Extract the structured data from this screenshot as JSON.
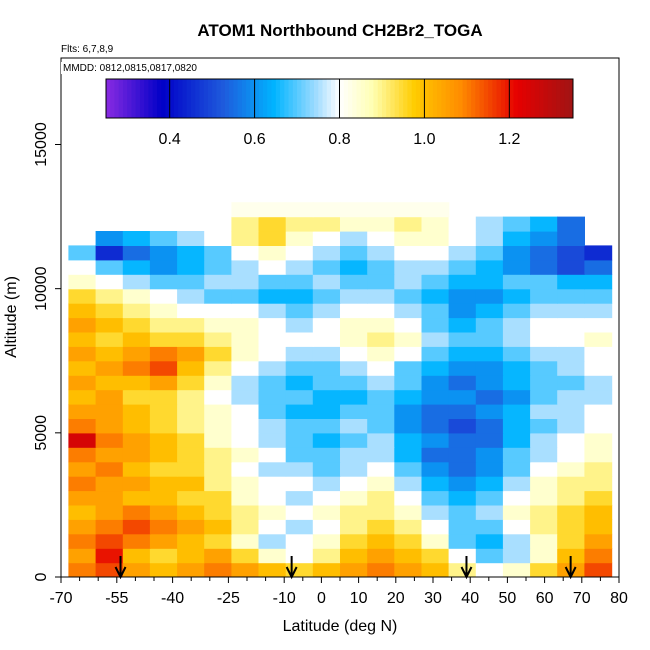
{
  "chart_data": {
    "type": "heatmap",
    "title": "ATOM1 Northbound CH2Br2_TOGA",
    "annotations": [
      "Flts: 6,7,8,9",
      "MMDD: 0812,0815,0817,0820"
    ],
    "xlabel": "Latitude (deg N)",
    "ylabel": "Altitude (m)",
    "xlim": [
      -70,
      80
    ],
    "ylim": [
      0,
      18000
    ],
    "x_ticks": [
      -70,
      -55,
      -40,
      -25,
      -10,
      0,
      10,
      20,
      30,
      40,
      50,
      60,
      70,
      80
    ],
    "x_tick_labels": [
      "-70",
      "-55",
      "-40",
      "-25",
      "-10",
      "0",
      "10",
      "20",
      "30",
      "40",
      "50",
      "60",
      "70",
      "80"
    ],
    "y_ticks": [
      0,
      5000,
      10000,
      15000
    ],
    "y_tick_labels": [
      "0",
      "5000",
      "10000",
      "15000"
    ],
    "colorbar": {
      "min": 0.25,
      "max": 1.35,
      "ticks": [
        0.4,
        0.6,
        0.8,
        1.0,
        1.2
      ],
      "tick_labels": [
        "0.4",
        "0.6",
        "0.8",
        "1.0",
        "1.2"
      ],
      "placement": "top inside plot"
    },
    "arrows_latitude": [
      -54,
      -8,
      39,
      67
    ],
    "grid": false,
    "rows": [
      {
        "alt": 250,
        "values": [
          1.1,
          1.15,
          1.05,
          1.0,
          1.05,
          1.1,
          1.05,
          1.0,
          0.95,
          1.0,
          1.05,
          1.1,
          1.05,
          1.0,
          0.9,
          0.8,
          0.85,
          0.95,
          1.05,
          1.15
        ]
      },
      {
        "alt": 750,
        "values": [
          1.05,
          1.2,
          1.0,
          0.95,
          1.0,
          1.05,
          0.95,
          0.85,
          0.8,
          0.9,
          1.0,
          1.05,
          1.0,
          0.95,
          0.8,
          0.7,
          0.75,
          0.85,
          1.0,
          1.1
        ]
      },
      {
        "alt": 1250,
        "values": [
          1.1,
          1.15,
          1.1,
          1.05,
          1.0,
          0.95,
          0.85,
          0.75,
          0.8,
          0.85,
          0.95,
          1.0,
          0.95,
          0.85,
          0.7,
          0.65,
          0.75,
          0.85,
          0.95,
          1.05
        ]
      },
      {
        "alt": 1750,
        "values": [
          1.05,
          1.1,
          1.15,
          1.1,
          1.05,
          1.0,
          0.9,
          0.8,
          0.75,
          0.8,
          0.9,
          0.95,
          0.9,
          0.8,
          0.7,
          0.7,
          0.8,
          0.9,
          0.95,
          1.0
        ]
      },
      {
        "alt": 2250,
        "values": [
          1.0,
          1.05,
          1.1,
          1.05,
          1.0,
          0.95,
          0.9,
          0.85,
          0.8,
          0.85,
          0.9,
          0.9,
          0.85,
          0.75,
          0.7,
          0.75,
          0.85,
          0.9,
          0.95,
          1.0
        ]
      },
      {
        "alt": 2750,
        "values": [
          1.05,
          1.05,
          1.0,
          1.0,
          0.95,
          0.95,
          0.85,
          0.8,
          0.75,
          0.8,
          0.85,
          0.9,
          0.8,
          0.7,
          0.65,
          0.7,
          0.8,
          0.85,
          0.9,
          0.95
        ]
      },
      {
        "alt": 3250,
        "values": [
          1.1,
          1.05,
          1.05,
          1.0,
          1.0,
          0.9,
          0.85,
          0.8,
          0.8,
          0.75,
          0.8,
          0.85,
          0.75,
          0.65,
          0.6,
          0.65,
          0.75,
          0.85,
          0.9,
          0.9
        ]
      },
      {
        "alt": 3750,
        "values": [
          1.05,
          1.1,
          1.0,
          0.95,
          0.95,
          0.9,
          0.8,
          0.75,
          0.75,
          0.7,
          0.75,
          0.8,
          0.7,
          0.6,
          0.55,
          0.6,
          0.7,
          0.8,
          0.85,
          0.9
        ]
      },
      {
        "alt": 4250,
        "values": [
          1.1,
          1.05,
          1.05,
          1.0,
          0.95,
          0.9,
          0.85,
          0.8,
          0.7,
          0.7,
          0.75,
          0.75,
          0.65,
          0.55,
          0.55,
          0.6,
          0.7,
          0.75,
          0.8,
          0.85
        ]
      },
      {
        "alt": 4750,
        "values": [
          1.25,
          1.1,
          1.05,
          1.0,
          0.95,
          0.85,
          0.8,
          0.75,
          0.7,
          0.65,
          0.7,
          0.75,
          0.65,
          0.6,
          0.55,
          0.55,
          0.65,
          0.75,
          0.8,
          0.85
        ]
      },
      {
        "alt": 5250,
        "values": [
          1.1,
          1.05,
          1.0,
          0.95,
          0.9,
          0.85,
          0.8,
          0.75,
          0.7,
          0.7,
          0.75,
          0.7,
          0.6,
          0.55,
          0.5,
          0.55,
          0.65,
          0.7,
          0.75,
          0.8
        ]
      },
      {
        "alt": 5750,
        "values": [
          1.05,
          1.05,
          1.0,
          0.95,
          0.9,
          0.85,
          0.8,
          0.7,
          0.65,
          0.65,
          0.7,
          0.7,
          0.6,
          0.55,
          0.55,
          0.6,
          0.65,
          0.75,
          0.75,
          0.8
        ]
      },
      {
        "alt": 6250,
        "values": [
          1.0,
          1.05,
          0.95,
          0.95,
          0.9,
          0.8,
          0.75,
          0.7,
          0.7,
          0.65,
          0.65,
          0.7,
          0.65,
          0.6,
          0.6,
          0.55,
          0.6,
          0.7,
          0.75,
          0.75
        ]
      },
      {
        "alt": 6750,
        "values": [
          1.05,
          1.0,
          1.0,
          1.05,
          0.95,
          0.85,
          0.75,
          0.7,
          0.65,
          0.7,
          0.7,
          0.75,
          0.7,
          0.6,
          0.55,
          0.6,
          0.65,
          0.7,
          0.7,
          0.75
        ]
      },
      {
        "alt": 7250,
        "values": [
          1.0,
          1.05,
          1.1,
          1.15,
          1.0,
          0.9,
          0.8,
          0.75,
          0.7,
          0.7,
          0.75,
          0.8,
          0.7,
          0.65,
          0.6,
          0.6,
          0.65,
          0.7,
          0.75,
          0.8
        ]
      },
      {
        "alt": 7750,
        "values": [
          1.05,
          1.0,
          1.05,
          1.1,
          1.05,
          0.95,
          0.85,
          0.8,
          0.75,
          0.75,
          0.8,
          0.85,
          0.8,
          0.7,
          0.65,
          0.65,
          0.7,
          0.75,
          0.75,
          0.8
        ]
      },
      {
        "alt": 8250,
        "values": [
          1.0,
          0.95,
          1.0,
          0.95,
          0.95,
          0.9,
          0.85,
          0.8,
          0.8,
          0.8,
          0.85,
          0.9,
          0.85,
          0.75,
          0.7,
          0.7,
          0.75,
          0.8,
          0.8,
          0.85
        ]
      },
      {
        "alt": 8750,
        "values": [
          1.05,
          1.0,
          0.95,
          0.9,
          0.9,
          0.85,
          0.85,
          0.8,
          0.75,
          0.8,
          0.85,
          0.85,
          0.8,
          0.7,
          0.65,
          0.7,
          0.75,
          0.8,
          0.8,
          0.8
        ]
      },
      {
        "alt": 9250,
        "values": [
          1.0,
          0.95,
          0.9,
          0.85,
          0.8,
          0.8,
          0.8,
          0.75,
          0.7,
          0.75,
          0.8,
          0.8,
          0.75,
          0.7,
          0.6,
          0.65,
          0.7,
          0.75,
          0.75,
          0.75
        ]
      },
      {
        "alt": 9750,
        "values": [
          0.95,
          0.9,
          0.85,
          0.8,
          0.75,
          0.7,
          0.7,
          0.65,
          0.65,
          0.7,
          0.75,
          0.75,
          0.7,
          0.65,
          0.6,
          0.6,
          0.65,
          0.7,
          0.7,
          0.7
        ]
      },
      {
        "alt": 10250,
        "values": [
          0.85,
          0.8,
          0.75,
          0.7,
          0.7,
          0.75,
          0.75,
          0.7,
          0.7,
          0.75,
          0.7,
          0.7,
          0.75,
          0.7,
          0.65,
          0.65,
          0.7,
          0.7,
          0.65,
          0.65
        ]
      },
      {
        "alt": 10750,
        "values": [
          0.8,
          0.7,
          0.65,
          0.6,
          0.65,
          0.7,
          0.75,
          0.8,
          0.75,
          0.7,
          0.65,
          0.7,
          0.75,
          0.75,
          0.7,
          0.65,
          0.6,
          0.55,
          0.5,
          0.55
        ]
      },
      {
        "alt": 11250,
        "values": [
          0.7,
          0.45,
          0.55,
          0.6,
          0.65,
          0.7,
          0.8,
          0.85,
          0.8,
          0.75,
          0.7,
          0.75,
          0.8,
          0.8,
          0.75,
          0.7,
          0.6,
          0.55,
          0.5,
          0.45
        ]
      },
      {
        "alt": 11750,
        "values": [
          null,
          0.6,
          0.65,
          0.7,
          0.75,
          0.8,
          0.9,
          0.95,
          0.85,
          0.8,
          0.75,
          0.8,
          0.85,
          0.85,
          0.8,
          0.75,
          0.65,
          0.6,
          0.55,
          null
        ]
      },
      {
        "alt": 12250,
        "values": [
          null,
          null,
          null,
          null,
          null,
          null,
          0.9,
          0.95,
          0.9,
          0.9,
          0.85,
          0.85,
          0.9,
          0.85,
          0.8,
          0.75,
          0.7,
          0.65,
          0.55,
          null
        ]
      },
      {
        "alt": 12750,
        "values": [
          null,
          null,
          null,
          null,
          null,
          null,
          0.82,
          0.82,
          0.82,
          0.82,
          0.82,
          0.82,
          0.82,
          0.82,
          null,
          null,
          null,
          null,
          null,
          null
        ]
      }
    ]
  }
}
